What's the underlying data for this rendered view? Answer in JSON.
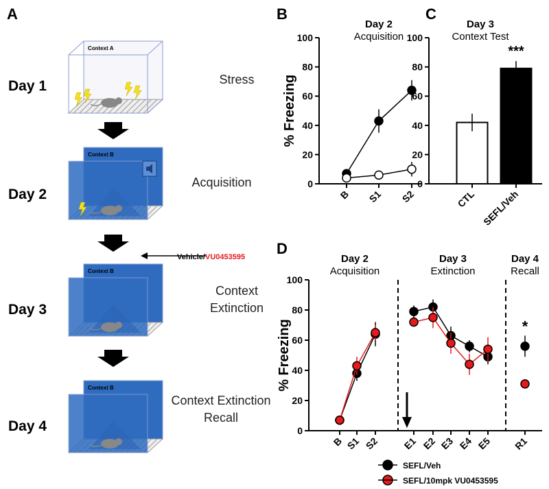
{
  "panel_a": {
    "label": "A",
    "days": [
      {
        "day": "Day 1",
        "context": "Context A",
        "event": "Stress"
      },
      {
        "day": "Day 2",
        "context": "Context B",
        "event": "Acquisition"
      },
      {
        "day": "Day 3",
        "context": "Context B",
        "event": "Context Extinction"
      },
      {
        "day": "Day 4",
        "context": "Context B",
        "event": "Context Extinction Recall"
      }
    ],
    "treatment": {
      "vehicle": "Vehicle/",
      "drug": "VU0453595"
    }
  },
  "chart_data": [
    {
      "type": "line",
      "label": "B",
      "title": "Day 2",
      "subtitle": "Acquisition",
      "ylabel": "% Freezing",
      "categories": [
        "B",
        "S1",
        "S2"
      ],
      "series": [
        {
          "color": "#000000",
          "values": [
            7,
            43,
            64
          ],
          "errors": [
            3,
            8,
            7
          ]
        },
        {
          "color": "#ffffff",
          "values": [
            4,
            6,
            10
          ],
          "errors": [
            1,
            1,
            5
          ]
        }
      ],
      "ylim": [
        0,
        100
      ],
      "yticks": [
        0,
        20,
        40,
        60,
        80,
        100
      ]
    },
    {
      "type": "bar",
      "label": "C",
      "title": "Day 3",
      "subtitle": "Context Test",
      "categories": [
        "CTL",
        "SEFL/Veh"
      ],
      "values": [
        42,
        79
      ],
      "errors": [
        6,
        5
      ],
      "colors": [
        "#ffffff",
        "#000000"
      ],
      "annotation": "***",
      "ylim": [
        0,
        100
      ],
      "yticks": [
        0,
        20,
        40,
        60,
        80,
        100
      ]
    },
    {
      "type": "grouped-line",
      "label": "D",
      "ylabel": "% Freezing",
      "groups": [
        {
          "title": "Day 2",
          "subtitle": "Acquisition",
          "categories": [
            "B",
            "S1",
            "S2"
          ]
        },
        {
          "title": "Day 3",
          "subtitle": "Extinction",
          "categories": [
            "E1",
            "E2",
            "E3",
            "E4",
            "E5"
          ]
        },
        {
          "title": "Day 4",
          "subtitle": "Recall",
          "categories": [
            "R1"
          ]
        }
      ],
      "series": [
        {
          "name": "SEFL/Veh",
          "color": "#000000",
          "values": [
            7,
            38,
            64,
            79,
            82,
            63,
            56,
            49,
            56
          ],
          "errors": [
            2,
            5,
            8,
            4,
            5,
            6,
            4,
            5,
            7
          ]
        },
        {
          "name": "SEFL/10mpk VU0453595",
          "color": "#e8191c",
          "values": [
            7,
            43,
            65,
            72,
            75,
            58,
            44,
            54,
            31
          ],
          "errors": [
            2,
            6,
            5,
            3,
            7,
            7,
            7,
            8,
            3
          ]
        }
      ],
      "annotation": "*",
      "ylim": [
        0,
        100
      ],
      "yticks": [
        0,
        20,
        40,
        60,
        80,
        100
      ]
    }
  ]
}
